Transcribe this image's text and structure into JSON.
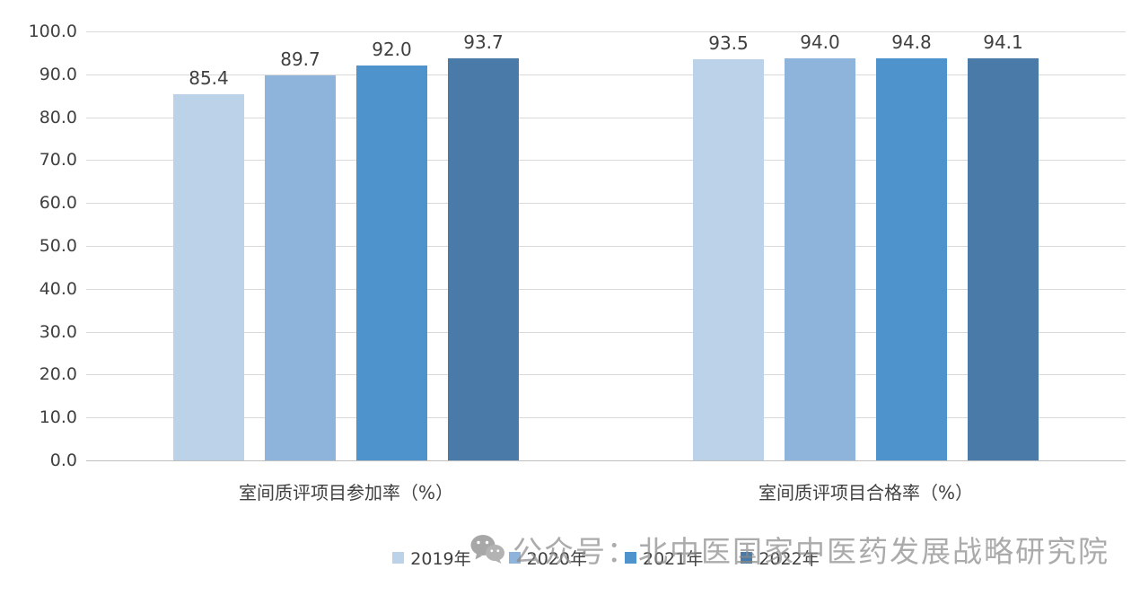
{
  "chart_data": {
    "type": "bar",
    "title": "",
    "categories": [
      "室间质评项目参加率（%）",
      "室间质评项目合格率（%）"
    ],
    "series": [
      {
        "name": "2019年",
        "color": "#BCD2E8",
        "values": [
          85.4,
          93.5
        ]
      },
      {
        "name": "2020年",
        "color": "#8EB4DC",
        "values": [
          89.7,
          94.0
        ]
      },
      {
        "name": "2021年",
        "color": "#4E93CB",
        "values": [
          92.0,
          94.8
        ]
      },
      {
        "name": "2022年",
        "color": "#4A7AA7",
        "values": [
          93.7,
          94.1
        ]
      }
    ],
    "xlabel": "",
    "ylabel": "",
    "ylim": [
      0,
      100
    ],
    "ytick_step": 10,
    "ytick_labels": [
      "0.0",
      "10.0",
      "20.0",
      "30.0",
      "40.0",
      "50.0",
      "60.0",
      "70.0",
      "80.0",
      "90.0",
      "100.0"
    ],
    "grid": true,
    "legend_position": "bottom",
    "data_labels": true
  },
  "watermark": {
    "icon": "wechat-icon",
    "text": "公众号：北中医国家中医药发展战略研究院"
  },
  "colors": {
    "gridline": "#d9d9d9",
    "axis_text": "#404040",
    "watermark_gray": "#8a8a8a"
  }
}
